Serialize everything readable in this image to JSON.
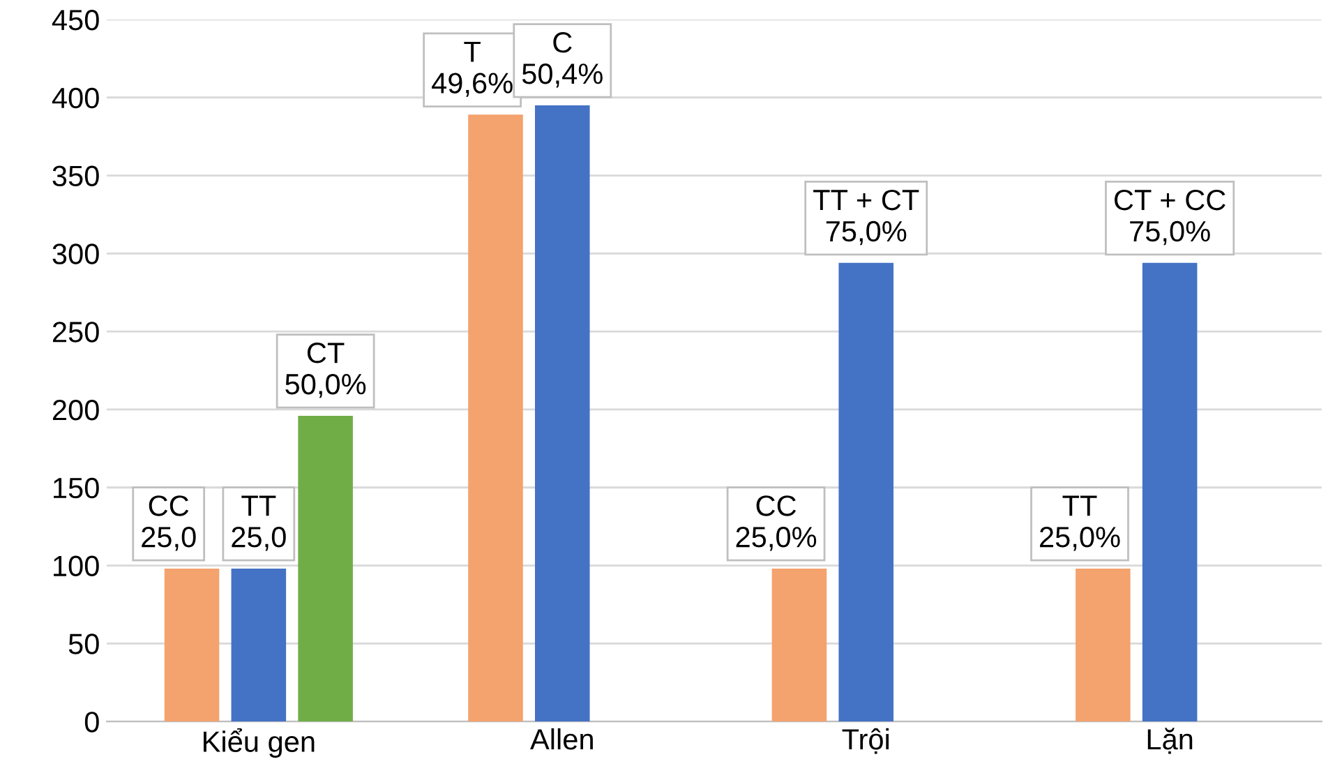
{
  "chart_data": {
    "type": "bar",
    "categories": [
      "Kiểu gen",
      "Allen",
      "Trội",
      "Lặn"
    ],
    "series": [
      {
        "color": "#f4a26e",
        "values": [
          98,
          389,
          98,
          98
        ],
        "value_labels": [
          "CC\n25,0",
          "T\n49,6%",
          "CC\n25,0%",
          "TT\n25,0%"
        ]
      },
      {
        "color": "#4472c4",
        "values": [
          98,
          395,
          294,
          294
        ],
        "value_labels": [
          "TT\n25,0",
          "C\n50,4%",
          "TT + CT\n75,0%",
          "CT + CC\n75,0%"
        ]
      },
      {
        "color": "#70ad47",
        "values": [
          196,
          null,
          null,
          null
        ],
        "value_labels": [
          "CT\n50,0%",
          null,
          null,
          null
        ]
      }
    ],
    "ylim": [
      0,
      450
    ],
    "yticks": [
      0,
      50,
      100,
      150,
      200,
      250,
      300,
      350,
      400,
      450
    ],
    "grid": "y"
  }
}
